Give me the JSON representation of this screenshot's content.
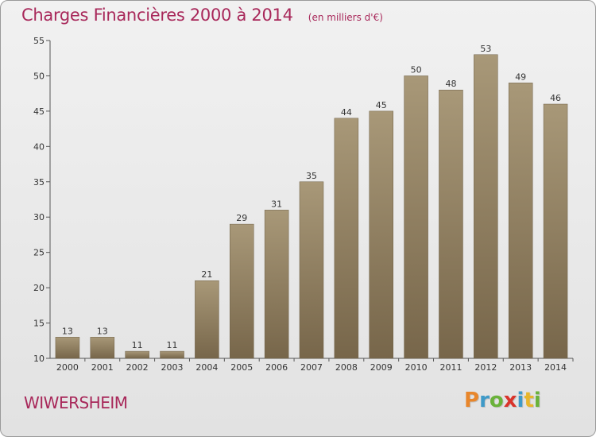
{
  "chart_data": {
    "type": "bar",
    "title": "Charges Financières 2000 à 2014",
    "subtitle": "(en milliers d'€)",
    "categories": [
      "2000",
      "2001",
      "2002",
      "2003",
      "2004",
      "2005",
      "2006",
      "2007",
      "2008",
      "2009",
      "2010",
      "2011",
      "2012",
      "2013",
      "2014"
    ],
    "values": [
      13,
      13,
      11,
      11,
      21,
      29,
      31,
      35,
      44,
      45,
      50,
      48,
      53,
      49,
      46
    ],
    "ylim": [
      10,
      55
    ],
    "yticks": [
      10,
      15,
      20,
      25,
      30,
      35,
      40,
      45,
      50,
      55
    ],
    "grid": false,
    "bar_color_top": "#a89878",
    "bar_color_bottom": "#77664a"
  },
  "footer": {
    "city": "WIWERSHEIM",
    "brand_letters": [
      "P",
      "r",
      "o",
      "x",
      "i",
      "t",
      "i"
    ],
    "brand_colors": [
      "#e8862b",
      "#3f9ac8",
      "#6ab23a",
      "#d9342b",
      "#3f9ac8",
      "#e8b62b",
      "#6ab23a"
    ]
  }
}
